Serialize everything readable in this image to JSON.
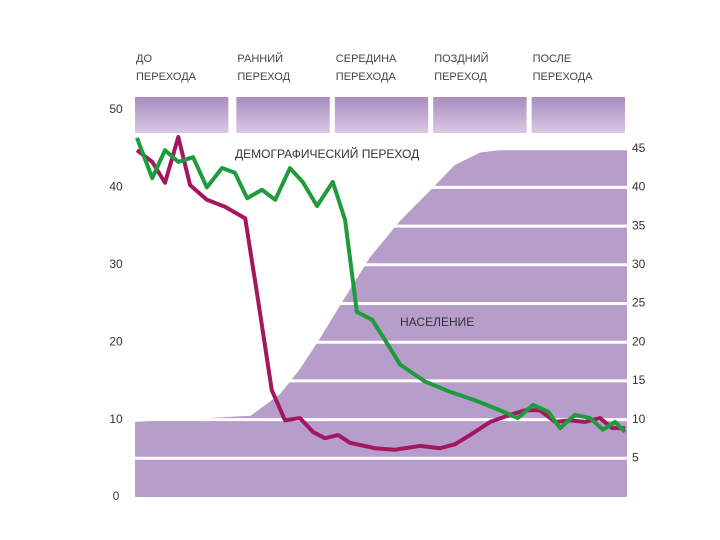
{
  "chart_data": {
    "type": "line",
    "stages": [
      [
        "ДО",
        "ПЕРЕХОДА"
      ],
      [
        "РАННИЙ",
        "ПЕРЕХОД"
      ],
      [
        "СЕРЕДИНА",
        "ПЕРЕХОДА"
      ],
      [
        "ПОЗДНИЙ",
        "ПЕРЕХОД"
      ],
      [
        "ПОСЛЕ",
        "ПЕРЕХОДА"
      ]
    ],
    "annotations": [
      "ДЕМОГРАФИЧЕСКИЙ ПЕРЕХОД",
      "НАСЕЛЕНИЕ"
    ],
    "xlim": [
      0,
      100
    ],
    "ylim": [
      0,
      50
    ],
    "yticks": [
      0,
      10,
      20,
      30,
      40,
      50
    ],
    "y2lim": [
      0,
      50
    ],
    "y2ticks": [
      5,
      10,
      15,
      20,
      25,
      30,
      35,
      40,
      45
    ],
    "grid": true,
    "series": [
      {
        "type": "area",
        "axis": "y2",
        "color": "#b79dca",
        "x": [
          0,
          23.5,
          29.5,
          33.5,
          37.6,
          42.7,
          47.8,
          53.9,
          60,
          65,
          70.1,
          76.2,
          100
        ],
        "values": [
          9.7,
          10.5,
          13.3,
          16.5,
          20.5,
          25.8,
          31,
          35.7,
          39.6,
          42.9,
          44.5,
          45,
          45
        ]
      },
      {
        "type": "line",
        "color": "#a3175f",
        "x": [
          0.4,
          3.5,
          6.1,
          8.8,
          11.2,
          14.6,
          18.3,
          22.4,
          25,
          27.8,
          30.5,
          33.5,
          36.2,
          38.6,
          41.3,
          43.7,
          48.8,
          52.8,
          57.9,
          62,
          65,
          68.1,
          72.2,
          76.2,
          79.3,
          82.3,
          85.4,
          88.4,
          91.5,
          94.5,
          97,
          99.6
        ],
        "values": [
          44.8,
          43.3,
          40.6,
          46.5,
          40.3,
          38.4,
          37.5,
          36,
          25.5,
          13.8,
          9.9,
          10.2,
          8.4,
          7.6,
          8,
          7,
          6.3,
          6.1,
          6.6,
          6.3,
          6.8,
          8,
          9.7,
          10.6,
          11.2,
          11.2,
          9.7,
          9.9,
          9.7,
          10.2,
          8.9,
          8.9
        ]
      },
      {
        "type": "line",
        "color": "#1f9b3c",
        "x": [
          0.4,
          3.5,
          6.1,
          8.8,
          11.8,
          14.6,
          17.7,
          20.3,
          22.8,
          25.8,
          28.5,
          31.5,
          34.1,
          37,
          40.2,
          42.7,
          45.1,
          48.2,
          50.8,
          53.9,
          59,
          64,
          69.1,
          74.2,
          77.8,
          80.9,
          84,
          86.4,
          89.4,
          92.5,
          95.1,
          97.6,
          99.6
        ],
        "values": [
          46.4,
          41.2,
          44.8,
          43.3,
          43.9,
          40,
          42.5,
          41.9,
          38.6,
          39.7,
          38.4,
          42.5,
          40.7,
          37.6,
          40.7,
          35.8,
          23.9,
          22.9,
          20.3,
          17.1,
          14.9,
          13.6,
          12.5,
          11.2,
          10.2,
          11.9,
          11,
          8.9,
          10.6,
          10.2,
          8.7,
          9.7,
          8.4
        ]
      }
    ]
  }
}
